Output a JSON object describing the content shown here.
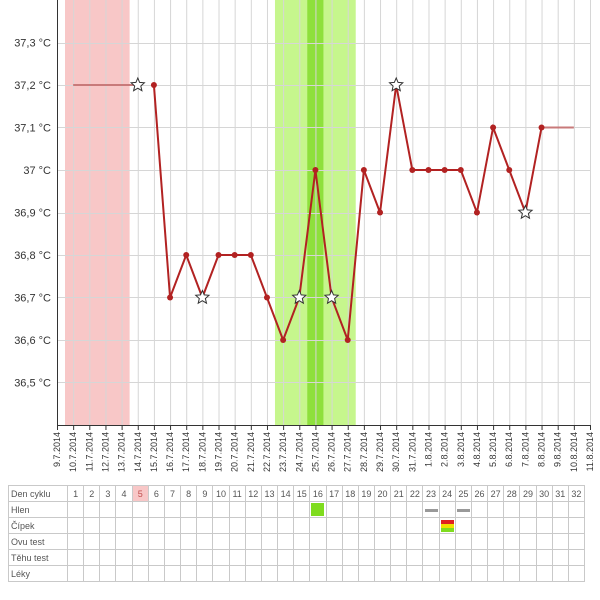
{
  "chart_data": {
    "type": "line",
    "ylabel_unit": "°C",
    "ylim": [
      36.4,
      37.4
    ],
    "yticks": [
      36.5,
      36.6,
      36.7,
      36.8,
      36.9,
      37.0,
      37.1,
      37.2,
      37.3
    ],
    "ytick_labels": [
      "36,5 °C",
      "36,6 °C",
      "36,7 °C",
      "36,8 °C",
      "36,9 °C",
      "37 °C",
      "37,1 °C",
      "37,2 °C",
      "37,3 °C"
    ],
    "x_dates": [
      "9.7.2014",
      "10.7.2014",
      "11.7.2014",
      "12.7.2014",
      "13.7.2014",
      "14.7.2014",
      "15.7.2014",
      "16.7.2014",
      "17.7.2014",
      "18.7.2014",
      "19.7.2014",
      "20.7.2014",
      "21.7.2014",
      "22.7.2014",
      "23.7.2014",
      "24.7.2014",
      "25.7.2014",
      "26.7.2014",
      "27.7.2014",
      "28.7.2014",
      "29.7.2014",
      "30.7.2014",
      "31.7.2014",
      "1.8.2014",
      "2.8.2014",
      "3.8.2014",
      "4.8.2014",
      "5.8.2014",
      "6.8.2014",
      "7.8.2014",
      "8.8.2014",
      "9.8.2014",
      "10.8.2014",
      "11.8.2014"
    ],
    "series": [
      {
        "color": "#b22222",
        "points": [
          {
            "date": "15.7.2014",
            "temp": 37.2
          },
          {
            "date": "16.7.2014",
            "temp": 36.7
          },
          {
            "date": "17.7.2014",
            "temp": 36.8
          },
          {
            "date": "18.7.2014",
            "temp": 36.7,
            "marker": "star"
          },
          {
            "date": "19.7.2014",
            "temp": 36.8
          },
          {
            "date": "20.7.2014",
            "temp": 36.8
          },
          {
            "date": "21.7.2014",
            "temp": 36.8
          },
          {
            "date": "22.7.2014",
            "temp": 36.7
          },
          {
            "date": "23.7.2014",
            "temp": 36.6
          },
          {
            "date": "24.7.2014",
            "temp": 36.7,
            "marker": "star"
          },
          {
            "date": "25.7.2014",
            "temp": 37.0
          },
          {
            "date": "26.7.2014",
            "temp": 36.7,
            "marker": "star"
          },
          {
            "date": "27.7.2014",
            "temp": 36.6
          },
          {
            "date": "28.7.2014",
            "temp": 37.0
          },
          {
            "date": "29.7.2014",
            "temp": 36.9
          },
          {
            "date": "30.7.2014",
            "temp": 37.2,
            "marker": "star"
          },
          {
            "date": "31.7.2014",
            "temp": 37.0
          },
          {
            "date": "1.8.2014",
            "temp": 37.0
          },
          {
            "date": "2.8.2014",
            "temp": 37.0
          },
          {
            "date": "3.8.2014",
            "temp": 37.0
          },
          {
            "date": "4.8.2014",
            "temp": 36.9
          },
          {
            "date": "5.8.2014",
            "temp": 37.1
          },
          {
            "date": "6.8.2014",
            "temp": 37.0
          },
          {
            "date": "7.8.2014",
            "temp": 36.9,
            "marker": "star"
          },
          {
            "date": "8.8.2014",
            "temp": 37.1
          }
        ]
      }
    ],
    "standalone_markers": [
      {
        "date": "14.7.2014",
        "temp": 37.2,
        "marker": "star"
      }
    ],
    "coverline_segments": [
      {
        "from": "10.7.2014",
        "to": "14.7.2014",
        "temp": 37.2,
        "color": "#c87a7a"
      },
      {
        "from": "8.8.2014",
        "to": "10.8.2014",
        "temp": 37.1,
        "color": "#c87a7a"
      }
    ],
    "bands": [
      {
        "name": "menstruation",
        "from": "9.7.2014",
        "to": "13.7.2014",
        "color": "#f8c7c7"
      },
      {
        "name": "fertile",
        "from": "22.7.2014",
        "to": "27.7.2014",
        "color": "#c6f68d"
      },
      {
        "name": "ovulation",
        "from": "24.7.2014",
        "to": "25.7.2014",
        "color": "#8ee03c"
      }
    ],
    "grid": true
  },
  "table": {
    "rows": [
      {
        "label": "Den cyklu"
      },
      {
        "label": "Hlen"
      },
      {
        "label": "Čípek"
      },
      {
        "label": "Ovu test"
      },
      {
        "label": "Těhu test"
      },
      {
        "label": "Léky"
      }
    ],
    "days": [
      "1",
      "2",
      "3",
      "4",
      "5",
      "6",
      "7",
      "8",
      "9",
      "10",
      "11",
      "12",
      "13",
      "14",
      "15",
      "16",
      "17",
      "18",
      "19",
      "20",
      "21",
      "22",
      "23",
      "24",
      "25",
      "26",
      "27",
      "28",
      "29",
      "30",
      "31",
      "32"
    ],
    "highlight_day_index": 4,
    "marks": [
      {
        "row": 1,
        "day_index": 15,
        "kind": "green"
      },
      {
        "row": 1,
        "day_index": 22,
        "kind": "gray"
      },
      {
        "row": 1,
        "day_index": 24,
        "kind": "gray"
      },
      {
        "row": 2,
        "day_index": 23,
        "kind": "stack",
        "colors": [
          "#e02020",
          "#f0e000",
          "#7fdc1e"
        ]
      }
    ]
  }
}
